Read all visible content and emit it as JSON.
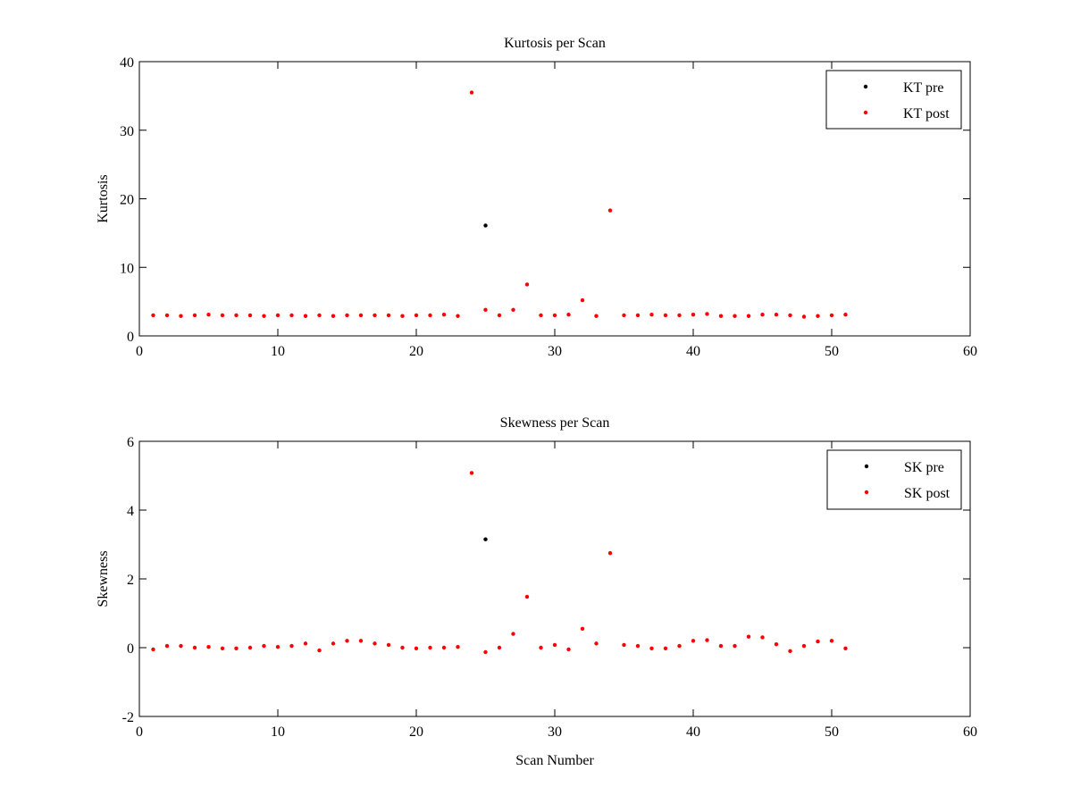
{
  "chart_data": [
    {
      "type": "scatter",
      "title": "Kurtosis per Scan",
      "xlabel": "",
      "ylabel": "Kurtosis",
      "xlim": [
        0,
        60
      ],
      "ylim": [
        0,
        40
      ],
      "xticks": [
        "0",
        "10",
        "20",
        "30",
        "40",
        "50",
        "60"
      ],
      "yticks": [
        "0",
        "10",
        "20",
        "30",
        "40"
      ],
      "legend_position": "top-right",
      "series": [
        {
          "name": "KT pre",
          "color": "#000000",
          "x": [
            25
          ],
          "y": [
            16.1
          ]
        },
        {
          "name": "KT post",
          "color": "#ff0000",
          "x": [
            1,
            2,
            3,
            4,
            5,
            6,
            7,
            8,
            9,
            10,
            11,
            12,
            13,
            14,
            15,
            16,
            17,
            18,
            19,
            20,
            21,
            22,
            23,
            24,
            25,
            26,
            27,
            28,
            29,
            30,
            31,
            32,
            33,
            34,
            35,
            36,
            37,
            38,
            39,
            40,
            41,
            42,
            43,
            44,
            45,
            46,
            47,
            48,
            49,
            50,
            51
          ],
          "y": [
            3.0,
            3.0,
            2.9,
            3.0,
            3.1,
            3.0,
            3.0,
            3.0,
            2.9,
            3.0,
            3.0,
            2.9,
            3.0,
            2.9,
            3.0,
            3.0,
            3.0,
            3.0,
            2.9,
            3.0,
            3.0,
            3.1,
            2.9,
            35.5,
            3.8,
            3.0,
            3.8,
            7.5,
            3.0,
            3.0,
            3.1,
            5.2,
            2.9,
            18.3,
            3.0,
            3.0,
            3.1,
            3.0,
            3.0,
            3.1,
            3.2,
            2.9,
            2.9,
            2.9,
            3.1,
            3.1,
            3.0,
            2.8,
            2.9,
            3.0,
            3.1
          ]
        }
      ]
    },
    {
      "type": "scatter",
      "title": "Skewness per Scan",
      "xlabel": "Scan Number",
      "ylabel": "Skewness",
      "xlim": [
        0,
        60
      ],
      "ylim": [
        -2,
        6
      ],
      "xticks": [
        "0",
        "10",
        "20",
        "30",
        "40",
        "50",
        "60"
      ],
      "yticks": [
        "-2",
        "0",
        "2",
        "4",
        "6"
      ],
      "legend_position": "top-right",
      "series": [
        {
          "name": "SK pre",
          "color": "#000000",
          "x": [
            25
          ],
          "y": [
            3.15
          ]
        },
        {
          "name": "SK post",
          "color": "#ff0000",
          "x": [
            1,
            2,
            3,
            4,
            5,
            6,
            7,
            8,
            9,
            10,
            11,
            12,
            13,
            14,
            15,
            16,
            17,
            18,
            19,
            20,
            21,
            22,
            23,
            24,
            25,
            26,
            27,
            28,
            29,
            30,
            31,
            32,
            33,
            34,
            35,
            36,
            37,
            38,
            39,
            40,
            41,
            42,
            43,
            44,
            45,
            46,
            47,
            48,
            49,
            50,
            51
          ],
          "y": [
            -0.05,
            0.05,
            0.05,
            0.0,
            0.02,
            -0.02,
            -0.02,
            0.0,
            0.05,
            0.02,
            0.05,
            0.12,
            -0.08,
            0.12,
            0.2,
            0.2,
            0.12,
            0.08,
            0.0,
            -0.02,
            0.0,
            0.0,
            0.02,
            5.08,
            -0.13,
            0.0,
            0.4,
            1.48,
            0.0,
            0.08,
            -0.05,
            0.55,
            0.12,
            2.75,
            0.08,
            0.05,
            -0.02,
            -0.02,
            0.05,
            0.2,
            0.22,
            0.05,
            0.05,
            0.32,
            0.3,
            0.1,
            -0.1,
            0.05,
            0.18,
            0.2,
            -0.02
          ]
        }
      ]
    }
  ]
}
